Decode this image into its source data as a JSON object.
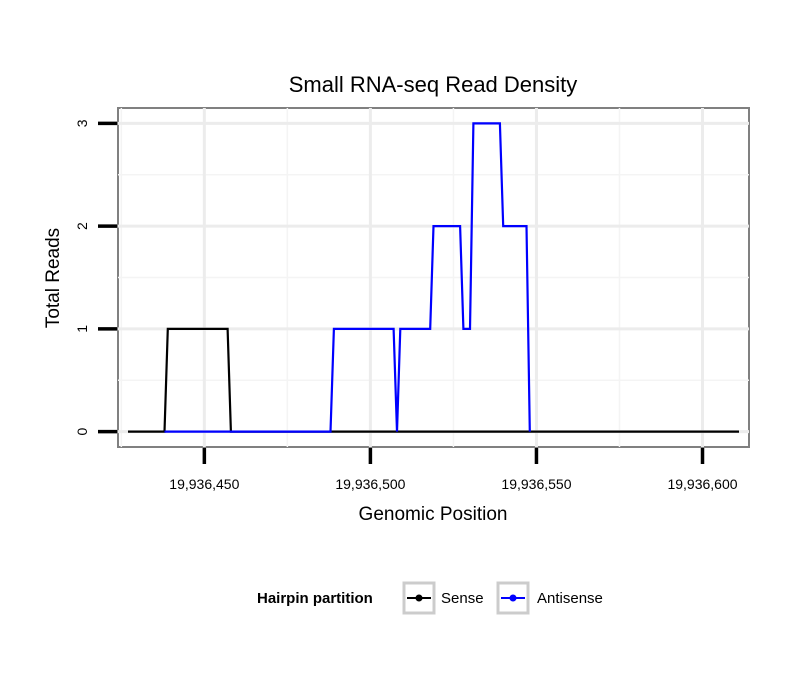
{
  "chart_data": {
    "type": "line",
    "title": "Small RNA-seq Read Density",
    "xlabel": "Genomic Position",
    "ylabel": "Total Reads",
    "xlim": [
      19936424,
      19936614
    ],
    "ylim": [
      -0.15,
      3.15
    ],
    "x_ticks": [
      19936450,
      19936500,
      19936550,
      19936600
    ],
    "x_tick_labels": [
      "19,936,450",
      "19,936,500",
      "19,936,550",
      "19,936,600"
    ],
    "y_ticks": [
      0,
      1,
      2,
      3
    ],
    "y_tick_labels": [
      "0",
      "1",
      "2",
      "3"
    ],
    "grid": true,
    "legend": {
      "title": "Hairpin partition",
      "position": "bottom",
      "entries": [
        "Sense",
        "Antisense"
      ]
    },
    "series": [
      {
        "name": "Sense",
        "color": "#000000",
        "points": [
          [
            19936427,
            0
          ],
          [
            19936438,
            0
          ],
          [
            19936439,
            1
          ],
          [
            19936457,
            1
          ],
          [
            19936458,
            0
          ],
          [
            19936611,
            0
          ]
        ]
      },
      {
        "name": "Antisense",
        "color": "#0000ff",
        "points": [
          [
            19936438,
            0
          ],
          [
            19936457,
            0
          ],
          [
            19936488,
            0
          ],
          [
            19936489,
            1
          ],
          [
            19936507,
            1
          ],
          [
            19936508,
            0
          ],
          [
            19936509,
            1
          ],
          [
            19936518,
            1
          ],
          [
            19936519,
            2
          ],
          [
            19936527,
            2
          ],
          [
            19936528,
            1
          ],
          [
            19936530,
            1
          ],
          [
            19936531,
            3
          ],
          [
            19936539,
            3
          ],
          [
            19936540,
            2
          ],
          [
            19936547,
            2
          ],
          [
            19936548,
            0
          ]
        ]
      }
    ]
  }
}
